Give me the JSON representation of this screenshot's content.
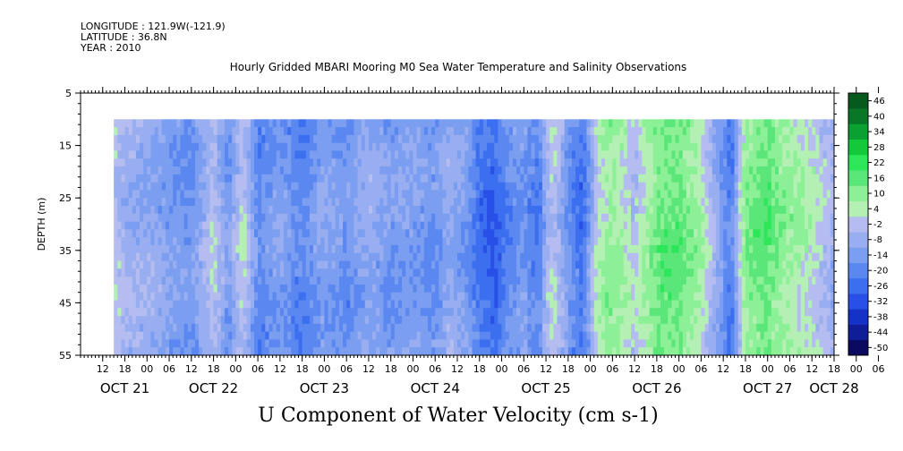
{
  "header": {
    "longitude": "LONGITUDE : 121.9W(-121.9)",
    "latitude": "LATITUDE : 36.8N",
    "year": "YEAR : 2010",
    "title": "Hourly Gridded MBARI Mooring M0 Sea Water Temperature and Salinity Observations"
  },
  "chart_data": {
    "type": "heatmap",
    "title": "Hourly Gridded MBARI Mooring M0 Sea Water Temperature and Salinity Observations",
    "xlabel": "",
    "ylabel": "DEPTH (m)",
    "bottom_title": "U Component of Water Velocity (cm s-1)",
    "y_ticks": [
      5,
      15,
      25,
      35,
      45,
      55
    ],
    "y_range": [
      5,
      55
    ],
    "y_inverted": true,
    "data_depth_range": [
      10,
      55
    ],
    "x_range_hours": [
      0,
      204
    ],
    "x_hour_ticks": [
      "12",
      "18",
      "00",
      "06",
      "12",
      "18",
      "00",
      "06",
      "12",
      "18",
      "00",
      "06",
      "12",
      "18",
      "00",
      "06",
      "12",
      "18",
      "00",
      "06",
      "12",
      "18",
      "00",
      "06",
      "12",
      "18",
      "00",
      "06",
      "12",
      "18",
      "00",
      "06",
      "12",
      "18",
      "00",
      "06"
    ],
    "x_date_labels": [
      "OCT 21",
      "OCT 22",
      "OCT 23",
      "OCT 24",
      "OCT 25",
      "OCT 26",
      "OCT 27",
      "OCT 28"
    ],
    "x_date_label_hours": [
      12,
      36,
      66,
      96,
      126,
      156,
      186,
      204
    ],
    "colorbar": {
      "levels": [
        -50,
        -44,
        -38,
        -32,
        -26,
        -20,
        -14,
        -8,
        -2,
        4,
        10,
        16,
        22,
        28,
        34,
        40,
        46
      ],
      "labels": [
        "46",
        "40",
        "34",
        "28",
        "22",
        "16",
        "10",
        "4",
        "-2",
        "-8",
        "-14",
        "-20",
        "-26",
        "-32",
        "-38",
        "-44",
        "-50"
      ]
    },
    "data_start_hour": 9,
    "data_end_hour": 204,
    "column_means": [
      {
        "hour": 9,
        "u": 2
      },
      {
        "hour": 12,
        "u": -4
      },
      {
        "hour": 18,
        "u": -6
      },
      {
        "hour": 24,
        "u": -10
      },
      {
        "hour": 30,
        "u": -14
      },
      {
        "hour": 36,
        "u": 2
      },
      {
        "hour": 40,
        "u": -12
      },
      {
        "hour": 44,
        "u": 4
      },
      {
        "hour": 48,
        "u": -16
      },
      {
        "hour": 54,
        "u": -10
      },
      {
        "hour": 60,
        "u": -18
      },
      {
        "hour": 66,
        "u": -8
      },
      {
        "hour": 72,
        "u": -14
      },
      {
        "hour": 78,
        "u": -6
      },
      {
        "hour": 84,
        "u": -12
      },
      {
        "hour": 90,
        "u": -10
      },
      {
        "hour": 96,
        "u": -14
      },
      {
        "hour": 100,
        "u": -6
      },
      {
        "hour": 104,
        "u": -10
      },
      {
        "hour": 108,
        "u": -22
      },
      {
        "hour": 112,
        "u": -26
      },
      {
        "hour": 116,
        "u": -16
      },
      {
        "hour": 120,
        "u": -12
      },
      {
        "hour": 124,
        "u": -20
      },
      {
        "hour": 126,
        "u": -4
      },
      {
        "hour": 128,
        "u": 4
      },
      {
        "hour": 132,
        "u": -14
      },
      {
        "hour": 136,
        "u": -22
      },
      {
        "hour": 140,
        "u": 6
      },
      {
        "hour": 144,
        "u": 12
      },
      {
        "hour": 150,
        "u": 2
      },
      {
        "hour": 156,
        "u": 16
      },
      {
        "hour": 162,
        "u": 18
      },
      {
        "hour": 168,
        "u": 8
      },
      {
        "hour": 172,
        "u": -6
      },
      {
        "hour": 176,
        "u": -20
      },
      {
        "hour": 180,
        "u": 14
      },
      {
        "hour": 186,
        "u": 18
      },
      {
        "hour": 192,
        "u": 10
      },
      {
        "hour": 198,
        "u": 6
      },
      {
        "hour": 204,
        "u": -4
      }
    ]
  }
}
